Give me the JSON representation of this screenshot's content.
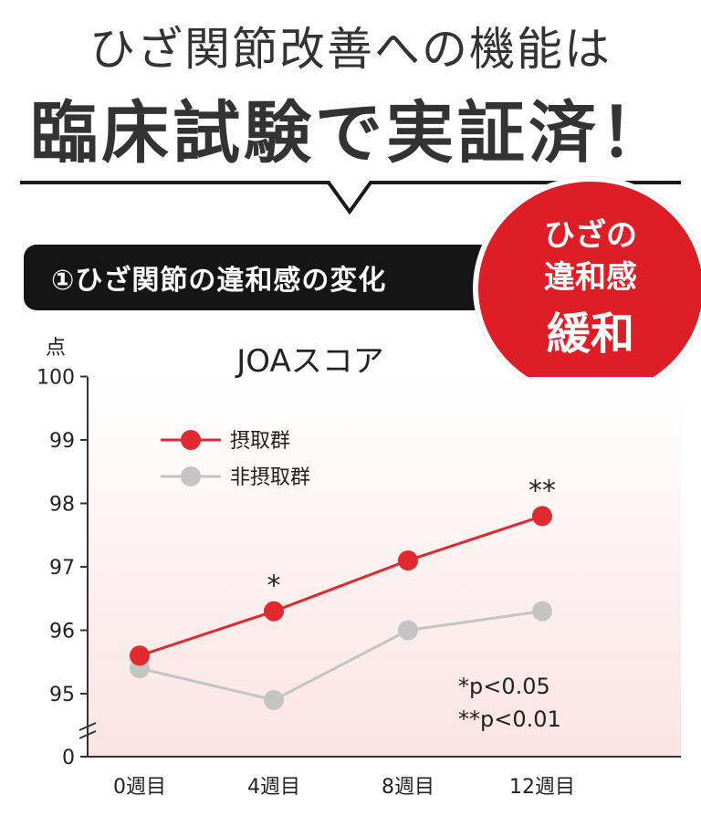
{
  "headline": {
    "line1": "ひざ関節改善への機能は",
    "line2": "臨床試験で実証済！"
  },
  "section": {
    "label": "①ひざ関節の違和感の変化"
  },
  "badge": {
    "line1": "ひざの",
    "line2": "違和感",
    "line3": "緩和",
    "color": "#de1e26"
  },
  "chart_data": {
    "type": "line",
    "title": "JOAスコア",
    "ylabel": "点",
    "xlabel": "",
    "categories": [
      "0週目",
      "4週目",
      "8週目",
      "12週目"
    ],
    "y_ticks": [
      "95",
      "96",
      "97",
      "98",
      "99",
      "100"
    ],
    "y_zero_label": "0",
    "ylim": [
      94,
      100
    ],
    "axis_break": true,
    "grid": false,
    "legend_position": "top-left",
    "series": [
      {
        "name": "摂取群",
        "values": [
          95.6,
          96.3,
          97.1,
          97.8
        ],
        "color": "#e02a2f"
      },
      {
        "name": "非摂取群",
        "values": [
          95.4,
          94.9,
          96.0,
          96.3
        ],
        "color": "#c4c4c4"
      }
    ],
    "significance": [
      {
        "category_index": 1,
        "label": "*"
      },
      {
        "category_index": 3,
        "label": "**"
      }
    ],
    "notes": [
      "*p<0.05",
      "**p<0.01"
    ]
  }
}
